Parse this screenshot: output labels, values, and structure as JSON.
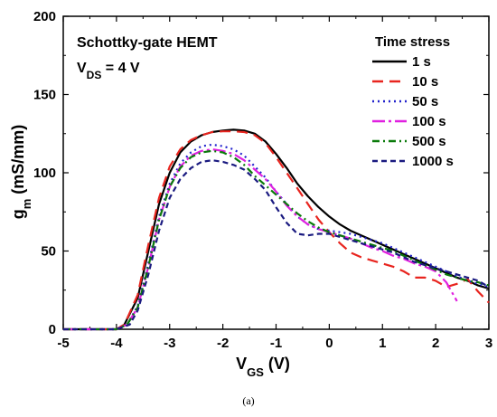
{
  "chart_data": {
    "type": "line",
    "xlabel_main": "V",
    "xlabel_sub": "GS",
    "xlabel_unit": " (V)",
    "ylabel_main": "g",
    "ylabel_sub": "m",
    "ylabel_unit": " (mS/mm)",
    "xlim": [
      -5,
      3
    ],
    "ylim": [
      0,
      200
    ],
    "xticks": [
      "-5",
      "-4",
      "-3",
      "-2",
      "-1",
      "0",
      "1",
      "2",
      "3"
    ],
    "yticks": [
      "0",
      "50",
      "100",
      "150",
      "200"
    ],
    "annotation_line1": "Schottky-gate HEMT",
    "annotation_line2_main": "V",
    "annotation_line2_sub": "DS",
    "annotation_line2_rest": " = 4 V",
    "legend_title": "Time stress",
    "legend_position": "top-right",
    "series": [
      {
        "name": "1 s",
        "color": "#000000",
        "dash": "",
        "points": [
          [
            -5,
            0
          ],
          [
            -4,
            0
          ],
          [
            -3.85,
            3
          ],
          [
            -3.6,
            20
          ],
          [
            -3.4,
            50
          ],
          [
            -3.2,
            80
          ],
          [
            -3.0,
            100
          ],
          [
            -2.8,
            113
          ],
          [
            -2.6,
            120
          ],
          [
            -2.4,
            124
          ],
          [
            -2.2,
            126
          ],
          [
            -2.0,
            127
          ],
          [
            -1.8,
            127.5
          ],
          [
            -1.6,
            127
          ],
          [
            -1.4,
            125
          ],
          [
            -1.2,
            120
          ],
          [
            -1.0,
            112
          ],
          [
            -0.8,
            103
          ],
          [
            -0.6,
            93
          ],
          [
            -0.4,
            85
          ],
          [
            -0.2,
            78
          ],
          [
            0,
            72
          ],
          [
            0.2,
            67
          ],
          [
            0.4,
            63
          ],
          [
            0.6,
            60
          ],
          [
            0.8,
            57
          ],
          [
            1.0,
            54
          ],
          [
            1.2,
            51
          ],
          [
            1.4,
            48
          ],
          [
            1.6,
            45
          ],
          [
            1.8,
            42
          ],
          [
            2.0,
            39
          ],
          [
            2.2,
            36
          ],
          [
            2.4,
            33
          ],
          [
            2.6,
            31
          ],
          [
            2.8,
            28
          ],
          [
            3.0,
            26
          ]
        ]
      },
      {
        "name": "10 s",
        "color": "#e8251f",
        "dash": "12,7",
        "points": [
          [
            -5,
            0
          ],
          [
            -4,
            0
          ],
          [
            -3.85,
            3
          ],
          [
            -3.6,
            22
          ],
          [
            -3.4,
            54
          ],
          [
            -3.2,
            84
          ],
          [
            -3.0,
            104
          ],
          [
            -2.8,
            115
          ],
          [
            -2.6,
            121
          ],
          [
            -2.4,
            124
          ],
          [
            -2.2,
            126
          ],
          [
            -2.0,
            126.5
          ],
          [
            -1.8,
            126.5
          ],
          [
            -1.6,
            126
          ],
          [
            -1.4,
            124
          ],
          [
            -1.2,
            119
          ],
          [
            -1.0,
            110
          ],
          [
            -0.8,
            100
          ],
          [
            -0.6,
            90
          ],
          [
            -0.4,
            80
          ],
          [
            -0.2,
            70
          ],
          [
            0,
            62
          ],
          [
            0.2,
            55
          ],
          [
            0.4,
            49
          ],
          [
            0.6,
            46
          ],
          [
            0.8,
            44
          ],
          [
            1.0,
            42
          ],
          [
            1.2,
            40
          ],
          [
            1.4,
            37
          ],
          [
            1.6,
            33
          ],
          [
            1.8,
            33
          ],
          [
            2.0,
            31
          ],
          [
            2.2,
            27
          ],
          [
            2.4,
            29
          ],
          [
            2.6,
            32
          ],
          [
            2.8,
            24
          ],
          [
            3.0,
            17
          ]
        ]
      },
      {
        "name": "50 s",
        "color": "#2222cc",
        "dash": "2,4",
        "points": [
          [
            -5,
            0
          ],
          [
            -4,
            0
          ],
          [
            -3.8,
            3
          ],
          [
            -3.6,
            15
          ],
          [
            -3.4,
            42
          ],
          [
            -3.2,
            72
          ],
          [
            -3.0,
            93
          ],
          [
            -2.8,
            106
          ],
          [
            -2.6,
            113
          ],
          [
            -2.4,
            117
          ],
          [
            -2.2,
            118
          ],
          [
            -2.0,
            117
          ],
          [
            -1.8,
            115
          ],
          [
            -1.6,
            111
          ],
          [
            -1.4,
            104
          ],
          [
            -1.2,
            97
          ],
          [
            -1.0,
            88
          ],
          [
            -0.8,
            80
          ],
          [
            -0.6,
            72
          ],
          [
            -0.4,
            67
          ],
          [
            -0.2,
            64
          ],
          [
            0,
            63
          ],
          [
            0.2,
            62
          ],
          [
            0.4,
            61
          ],
          [
            0.6,
            59
          ],
          [
            0.8,
            57
          ],
          [
            1.0,
            55
          ],
          [
            1.2,
            52
          ],
          [
            1.4,
            49
          ],
          [
            1.6,
            46
          ],
          [
            1.8,
            43
          ],
          [
            2.0,
            40
          ],
          [
            2.2,
            37
          ],
          [
            2.4,
            34
          ],
          [
            2.6,
            31
          ],
          [
            2.8,
            29
          ],
          [
            3.0,
            27
          ]
        ]
      },
      {
        "name": "100 s",
        "color": "#e020e0",
        "dash": "14,4,3,4",
        "points": [
          [
            -5,
            0
          ],
          [
            -4,
            0
          ],
          [
            -3.8,
            3
          ],
          [
            -3.6,
            14
          ],
          [
            -3.4,
            40
          ],
          [
            -3.2,
            70
          ],
          [
            -3.0,
            91
          ],
          [
            -2.8,
            104
          ],
          [
            -2.6,
            111
          ],
          [
            -2.4,
            114
          ],
          [
            -2.2,
            115
          ],
          [
            -2.0,
            114
          ],
          [
            -1.8,
            112
          ],
          [
            -1.6,
            108
          ],
          [
            -1.4,
            102
          ],
          [
            -1.2,
            96
          ],
          [
            -1.0,
            88
          ],
          [
            -0.8,
            79
          ],
          [
            -0.6,
            72
          ],
          [
            -0.4,
            67
          ],
          [
            -0.2,
            64
          ],
          [
            0,
            62
          ],
          [
            0.2,
            60
          ],
          [
            0.4,
            58
          ],
          [
            0.6,
            55
          ],
          [
            0.8,
            52
          ],
          [
            1.0,
            50
          ],
          [
            1.2,
            47
          ],
          [
            1.4,
            45
          ],
          [
            1.6,
            42
          ],
          [
            1.8,
            40
          ],
          [
            2.0,
            37
          ],
          [
            2.2,
            30
          ],
          [
            2.4,
            18
          ]
        ]
      },
      {
        "name": "500 s",
        "color": "#0a7a0a",
        "dash": "8,4,2,4",
        "points": [
          [
            -5,
            0
          ],
          [
            -4,
            0
          ],
          [
            -3.8,
            3
          ],
          [
            -3.6,
            14
          ],
          [
            -3.4,
            40
          ],
          [
            -3.2,
            70
          ],
          [
            -3.0,
            91
          ],
          [
            -2.8,
            103
          ],
          [
            -2.6,
            110
          ],
          [
            -2.4,
            113
          ],
          [
            -2.2,
            114
          ],
          [
            -2.0,
            113
          ],
          [
            -1.8,
            110
          ],
          [
            -1.6,
            105
          ],
          [
            -1.4,
            98
          ],
          [
            -1.2,
            92
          ],
          [
            -1.0,
            86
          ],
          [
            -0.8,
            80
          ],
          [
            -0.6,
            74
          ],
          [
            -0.4,
            69
          ],
          [
            -0.2,
            65
          ],
          [
            0,
            62
          ],
          [
            0.2,
            60
          ],
          [
            0.4,
            58
          ],
          [
            0.6,
            56
          ],
          [
            0.8,
            54
          ],
          [
            1.0,
            52
          ],
          [
            1.2,
            50
          ],
          [
            1.4,
            47
          ],
          [
            1.6,
            44
          ],
          [
            1.8,
            41
          ],
          [
            2.0,
            38
          ],
          [
            2.2,
            35
          ],
          [
            2.4,
            33
          ],
          [
            2.6,
            31
          ],
          [
            2.8,
            30
          ],
          [
            3.0,
            28
          ]
        ]
      },
      {
        "name": "1000 s",
        "color": "#1a1a80",
        "dash": "6,4",
        "points": [
          [
            -5,
            0
          ],
          [
            -4,
            0
          ],
          [
            -3.75,
            3
          ],
          [
            -3.6,
            12
          ],
          [
            -3.4,
            35
          ],
          [
            -3.2,
            63
          ],
          [
            -3.0,
            84
          ],
          [
            -2.8,
            96
          ],
          [
            -2.6,
            103
          ],
          [
            -2.4,
            107
          ],
          [
            -2.2,
            108
          ],
          [
            -2.0,
            107
          ],
          [
            -1.8,
            105
          ],
          [
            -1.6,
            102
          ],
          [
            -1.4,
            96
          ],
          [
            -1.2,
            89
          ],
          [
            -1.0,
            78
          ],
          [
            -0.8,
            68
          ],
          [
            -0.6,
            61
          ],
          [
            -0.4,
            60
          ],
          [
            -0.2,
            61
          ],
          [
            0,
            61
          ],
          [
            0.2,
            59
          ],
          [
            0.4,
            57
          ],
          [
            0.6,
            55
          ],
          [
            0.8,
            53
          ],
          [
            1.0,
            51
          ],
          [
            1.2,
            49
          ],
          [
            1.4,
            46
          ],
          [
            1.6,
            43
          ],
          [
            1.8,
            41
          ],
          [
            2.0,
            39
          ],
          [
            2.2,
            37
          ],
          [
            2.4,
            35
          ],
          [
            2.6,
            33
          ],
          [
            2.8,
            31
          ],
          [
            3.0,
            27
          ]
        ]
      }
    ]
  },
  "caption": "(a)"
}
